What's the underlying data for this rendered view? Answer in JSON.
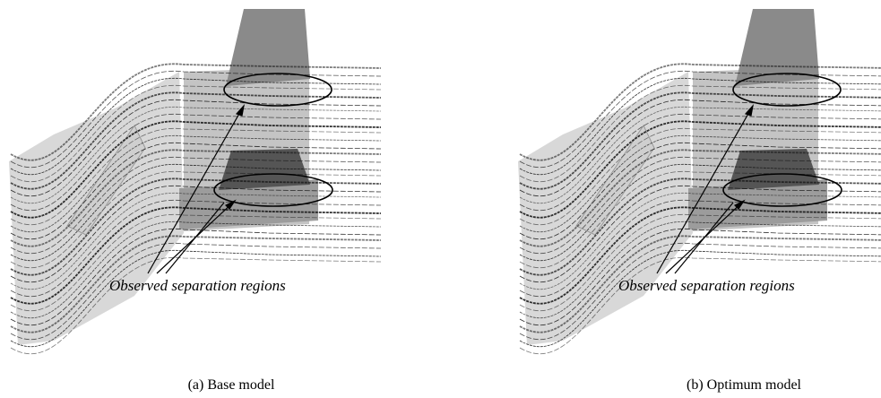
{
  "panels": [
    {
      "annotation": "Observed separation regions",
      "caption": "(a) Base model"
    },
    {
      "annotation": "Observed separation regions",
      "caption": "(b) Optimum model"
    }
  ]
}
